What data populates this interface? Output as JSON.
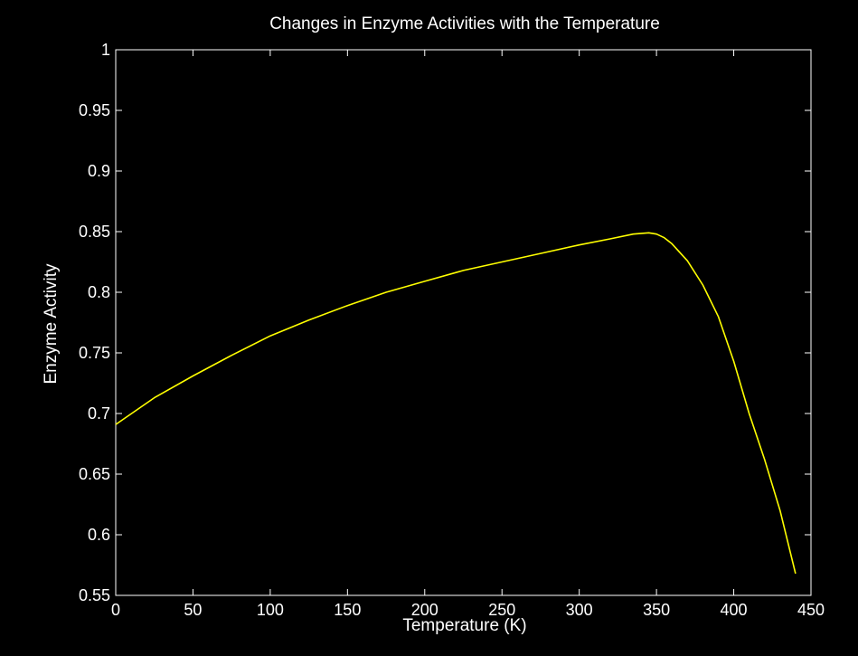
{
  "chart_data": {
    "type": "line",
    "title": "Changes in Enzyme Activities with the Temperature",
    "xlabel": "Temperature (K)",
    "ylabel": "Enzyme Activity",
    "xlim": [
      0,
      450
    ],
    "ylim": [
      0.55,
      1
    ],
    "xticks": [
      0,
      50,
      100,
      150,
      200,
      250,
      300,
      350,
      400,
      450
    ],
    "xtick_labels": [
      "0",
      "50",
      "100",
      "150",
      "200",
      "250",
      "300",
      "350",
      "400",
      "450"
    ],
    "yticks": [
      0.55,
      0.6,
      0.65,
      0.7,
      0.75,
      0.8,
      0.85,
      0.9,
      0.95,
      1
    ],
    "ytick_labels": [
      "0.55",
      "0.6",
      "0.65",
      "0.7",
      "0.75",
      "0.8",
      "0.85",
      "0.9",
      "0.95",
      "1"
    ],
    "grid": false,
    "series": [
      {
        "color": "#ffff00",
        "x": [
          0,
          25,
          50,
          75,
          100,
          125,
          150,
          175,
          200,
          225,
          250,
          275,
          300,
          320,
          335,
          345,
          350,
          355,
          360,
          370,
          380,
          390,
          400,
          410,
          420,
          430,
          440
        ],
        "y": [
          0.691,
          0.713,
          0.731,
          0.748,
          0.764,
          0.777,
          0.789,
          0.8,
          0.809,
          0.818,
          0.825,
          0.832,
          0.839,
          0.844,
          0.848,
          0.849,
          0.848,
          0.845,
          0.84,
          0.826,
          0.806,
          0.78,
          0.743,
          0.7,
          0.662,
          0.62,
          0.568
        ]
      }
    ]
  }
}
